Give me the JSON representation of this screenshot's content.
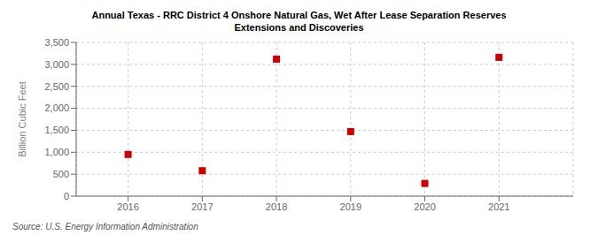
{
  "chart_data": {
    "type": "scatter",
    "title": "Annual Texas - RRC District 4 Onshore Natural Gas, Wet After Lease Separation Reserves\nExtensions and Discoveries",
    "y_label": "Billion Cubic Feet",
    "annotations": [
      "Source: U.S. Energy Information Administration"
    ],
    "x": [
      2016,
      2017,
      2018,
      2019,
      2020,
      2021
    ],
    "values": [
      950,
      580,
      3120,
      1470,
      290,
      3160
    ],
    "xlim": [
      2015.3,
      2022
    ],
    "ylim": [
      0,
      3500
    ],
    "xticks": [
      2016,
      2017,
      2018,
      2019,
      2020,
      2021
    ],
    "yticks": [
      0,
      500,
      {
        "value": 1000,
        "label": "1,000"
      },
      {
        "value": 1500,
        "label": "1,500"
      },
      {
        "value": 2000,
        "label": "2,000"
      },
      {
        "value": 2500,
        "label": "2,500"
      },
      {
        "value": 3000,
        "label": "3,000"
      },
      {
        "value": 3500,
        "label": "3,500"
      }
    ],
    "color": "#cc0000",
    "marker": "square",
    "grid": true
  }
}
